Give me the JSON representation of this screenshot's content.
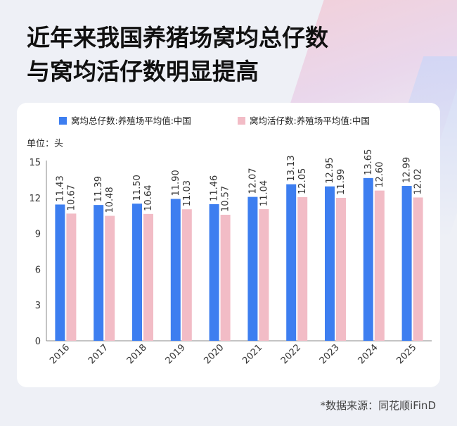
{
  "title_line1": "近年来我国养猪场窝均总仔数",
  "title_line2": "与窝均活仔数明显提高",
  "source": "*数据来源：同花顺iFinD",
  "chart_data": {
    "type": "bar",
    "title": "近年来我国养猪场窝均总仔数与窝均活仔数明显提高",
    "unit_label": "单位：头",
    "categories": [
      "2016",
      "2017",
      "2018",
      "2019",
      "2020",
      "2021",
      "2022",
      "2023",
      "2024",
      "2025"
    ],
    "series": [
      {
        "name": "窝均总仔数:养殖场平均值:中国",
        "color": "#3d7ef0",
        "values": [
          11.43,
          11.39,
          11.5,
          11.9,
          11.46,
          12.07,
          13.13,
          12.95,
          13.65,
          12.99
        ]
      },
      {
        "name": "窝均活仔数:养殖场平均值:中国",
        "color": "#f2bcc6",
        "values": [
          10.67,
          10.48,
          10.64,
          11.03,
          10.57,
          11.04,
          12.05,
          11.99,
          12.6,
          12.02
        ]
      }
    ],
    "labels": [
      [
        "11.43",
        "11.39",
        "11.50",
        "11.90",
        "11.46",
        "12.07",
        "13.13",
        "12.95",
        "13.65",
        "12.99"
      ],
      [
        "10.67",
        "10.48",
        "10.64",
        "11.03",
        "10.57",
        "11.04",
        "12.05",
        "11.99",
        "12.60",
        "12.02"
      ]
    ],
    "yticks": [
      "0",
      "3",
      "6",
      "9",
      "12",
      "15"
    ],
    "ylim": [
      0,
      15
    ],
    "legend_position": "top",
    "grid": false
  }
}
